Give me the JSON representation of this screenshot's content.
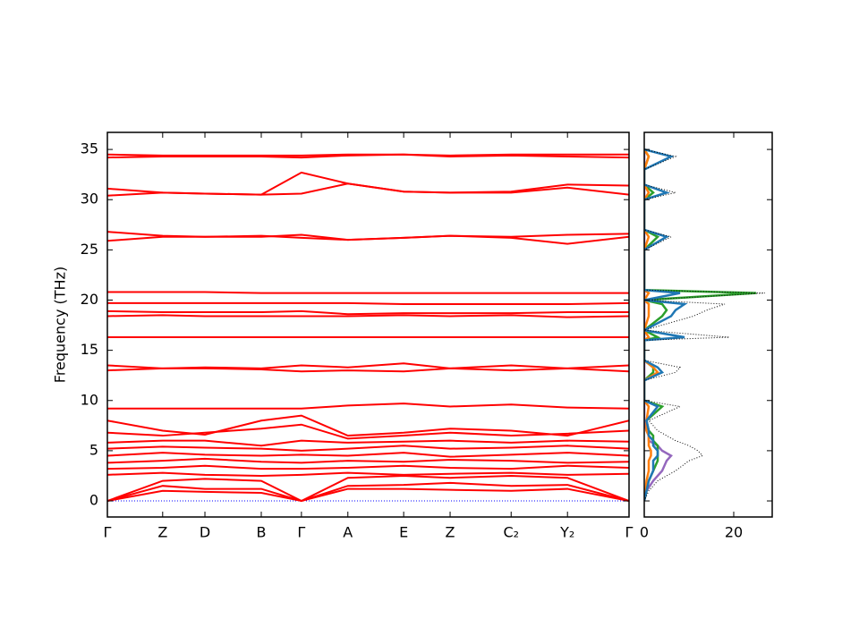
{
  "chart_data": [
    {
      "type": "band",
      "y_label": "Frequency (THz)",
      "color": "#ff0000",
      "zero_line_color": "#0000ff",
      "xlim": [
        0,
        1
      ],
      "ylim": [
        -1.6,
        36.7
      ],
      "xticks": [
        {
          "value": 0,
          "label": "Γ"
        },
        {
          "value": 0.106,
          "label": "Z"
        },
        {
          "value": 0.187,
          "label": "D"
        },
        {
          "value": 0.295,
          "label": "B"
        },
        {
          "value": 0.372,
          "label": "Γ"
        },
        {
          "value": 0.461,
          "label": "A"
        },
        {
          "value": 0.568,
          "label": "E"
        },
        {
          "value": 0.657,
          "label": "Z"
        },
        {
          "value": 0.774,
          "label": "C₂"
        },
        {
          "value": 0.882,
          "label": "Y₂"
        },
        {
          "value": 1,
          "label": "Γ"
        }
      ],
      "yticks": [
        0,
        5,
        10,
        15,
        20,
        25,
        30,
        35
      ],
      "x": [
        0,
        0.106,
        0.187,
        0.295,
        0.372,
        0.461,
        0.568,
        0.657,
        0.774,
        0.882,
        1
      ],
      "bands": [
        [
          34.5,
          34.4,
          34.4,
          34.4,
          34.4,
          34.5,
          34.5,
          34.4,
          34.5,
          34.5,
          34.5
        ],
        [
          34.2,
          34.3,
          34.3,
          34.3,
          34.2,
          34.4,
          34.5,
          34.3,
          34.4,
          34.3,
          34.2
        ],
        [
          31.1,
          30.7,
          30.6,
          30.5,
          30.6,
          31.6,
          30.8,
          30.7,
          30.8,
          31.5,
          31.4
        ],
        [
          30.4,
          30.7,
          30.6,
          30.5,
          32.7,
          31.6,
          30.8,
          30.7,
          30.7,
          31.2,
          30.5
        ],
        [
          26.8,
          26.4,
          26.3,
          26.3,
          26.5,
          26.0,
          26.2,
          26.4,
          26.3,
          26.5,
          26.6
        ],
        [
          25.9,
          26.3,
          26.3,
          26.4,
          26.2,
          26.0,
          26.2,
          26.4,
          26.2,
          25.6,
          26.3
        ],
        [
          20.8,
          20.8,
          20.8,
          20.7,
          20.7,
          20.7,
          20.7,
          20.7,
          20.7,
          20.7,
          20.7
        ],
        [
          19.7,
          19.7,
          19.7,
          19.7,
          19.7,
          19.7,
          19.6,
          19.6,
          19.6,
          19.6,
          19.7
        ],
        [
          18.9,
          18.8,
          18.8,
          18.8,
          18.9,
          18.6,
          18.7,
          18.7,
          18.7,
          18.8,
          18.8
        ],
        [
          18.4,
          18.5,
          18.4,
          18.4,
          18.4,
          18.4,
          18.5,
          18.4,
          18.5,
          18.3,
          18.4
        ],
        [
          16.3,
          16.3,
          16.3,
          16.3,
          16.3,
          16.3,
          16.3,
          16.3,
          16.3,
          16.3,
          16.3
        ],
        [
          13.5,
          13.2,
          13.3,
          13.2,
          13.5,
          13.3,
          13.7,
          13.2,
          13.5,
          13.2,
          13.5
        ],
        [
          13.0,
          13.2,
          13.2,
          13.1,
          12.9,
          13.0,
          12.9,
          13.2,
          13.0,
          13.2,
          12.9
        ],
        [
          9.2,
          9.2,
          9.2,
          9.2,
          9.2,
          9.5,
          9.7,
          9.4,
          9.6,
          9.3,
          9.2
        ],
        [
          8.0,
          7.0,
          6.6,
          8.0,
          8.5,
          6.5,
          6.8,
          7.2,
          7.0,
          6.5,
          8.0
        ],
        [
          6.8,
          6.5,
          6.8,
          7.2,
          7.6,
          6.2,
          6.5,
          6.8,
          6.5,
          6.7,
          7.0
        ],
        [
          5.8,
          6.0,
          6.0,
          5.5,
          6.0,
          5.8,
          5.9,
          6.0,
          5.8,
          6.0,
          5.9
        ],
        [
          5.2,
          5.4,
          5.3,
          5.2,
          5.0,
          5.2,
          5.5,
          5.2,
          5.3,
          5.5,
          5.2
        ],
        [
          4.5,
          4.8,
          4.6,
          4.5,
          4.6,
          4.5,
          4.8,
          4.4,
          4.6,
          4.8,
          4.5
        ],
        [
          3.8,
          4.0,
          4.2,
          3.9,
          3.8,
          4.0,
          3.9,
          4.1,
          4.0,
          3.8,
          3.9
        ],
        [
          3.2,
          3.3,
          3.5,
          3.2,
          3.2,
          3.3,
          3.5,
          3.3,
          3.2,
          3.5,
          3.3
        ],
        [
          2.6,
          2.8,
          2.6,
          2.5,
          2.6,
          2.8,
          2.6,
          2.7,
          2.8,
          2.6,
          2.7
        ],
        [
          0,
          2.0,
          2.2,
          2.0,
          0,
          2.3,
          2.5,
          2.3,
          2.5,
          2.3,
          0
        ],
        [
          0,
          1.5,
          1.2,
          1.2,
          0,
          1.5,
          1.6,
          1.8,
          1.5,
          1.6,
          0
        ],
        [
          0,
          1.0,
          0.9,
          0.8,
          0,
          1.2,
          1.2,
          1.1,
          1.0,
          1.2,
          0
        ]
      ]
    },
    {
      "type": "dos",
      "xlim": [
        0,
        28.6
      ],
      "ylim": [
        -1.6,
        36.7
      ],
      "xticks": [
        0,
        20
      ],
      "yticks": [
        0,
        5,
        10,
        15,
        20,
        25,
        30,
        35
      ],
      "frequencies": [
        0,
        1,
        2,
        3,
        4,
        4.5,
        5,
        5.5,
        6,
        6.5,
        7,
        8,
        9.4,
        10,
        12,
        12.8,
        13.3,
        14,
        16,
        16.3,
        17,
        18.4,
        19.0,
        19.6,
        20,
        20.7,
        21,
        25,
        26.3,
        27,
        30,
        30.7,
        31.5,
        33,
        34.3,
        35
      ],
      "series": [
        {
          "color": "#000000",
          "style": "dotted",
          "values": [
            0,
            1,
            3,
            7,
            10,
            13,
            12,
            10,
            7,
            5,
            3,
            1,
            8,
            0,
            0,
            7,
            8,
            0,
            0,
            19,
            0,
            11,
            14,
            18,
            0,
            27,
            0,
            0,
            6,
            0,
            0,
            7,
            0,
            0,
            7,
            0
          ]
        },
        {
          "color": "#1f77b4",
          "style": "solid",
          "values": [
            0,
            0.5,
            1,
            2,
            2,
            3,
            3,
            2,
            2,
            1,
            1,
            0.5,
            3,
            0,
            0,
            4,
            3,
            0,
            0,
            9,
            0,
            6,
            7,
            9,
            0,
            8,
            0,
            0,
            5,
            0,
            0,
            5,
            0,
            0,
            6,
            0
          ]
        },
        {
          "color": "#ff7f0e",
          "style": "solid",
          "values": [
            0,
            0.3,
            0.5,
            1,
            1,
            1.5,
            1.5,
            1,
            1,
            1,
            0.5,
            0.5,
            1,
            0,
            0,
            3,
            2,
            0,
            0,
            1,
            0,
            1,
            1,
            1,
            0,
            1,
            0,
            0,
            1,
            0,
            0,
            1,
            0,
            0,
            1,
            0
          ]
        },
        {
          "color": "#2ca02c",
          "style": "solid",
          "values": [
            0,
            0.5,
            1,
            2,
            3,
            3,
            3,
            3,
            2,
            2,
            1,
            0.5,
            4,
            0,
            0,
            2,
            2,
            0,
            0,
            3,
            0,
            4,
            5,
            4,
            0,
            25,
            0,
            0,
            3,
            0,
            0,
            2,
            0,
            0,
            1,
            0
          ]
        },
        {
          "color": "#9467bd",
          "style": "solid",
          "values": [
            0,
            0.5,
            2,
            4,
            5,
            6,
            4,
            3,
            1,
            1,
            0.5,
            0,
            0,
            0,
            0,
            0,
            0,
            0,
            0,
            0,
            0,
            0,
            0,
            0,
            0,
            0,
            0,
            0,
            0,
            0,
            0,
            0,
            0,
            0,
            0,
            0
          ]
        }
      ]
    }
  ]
}
